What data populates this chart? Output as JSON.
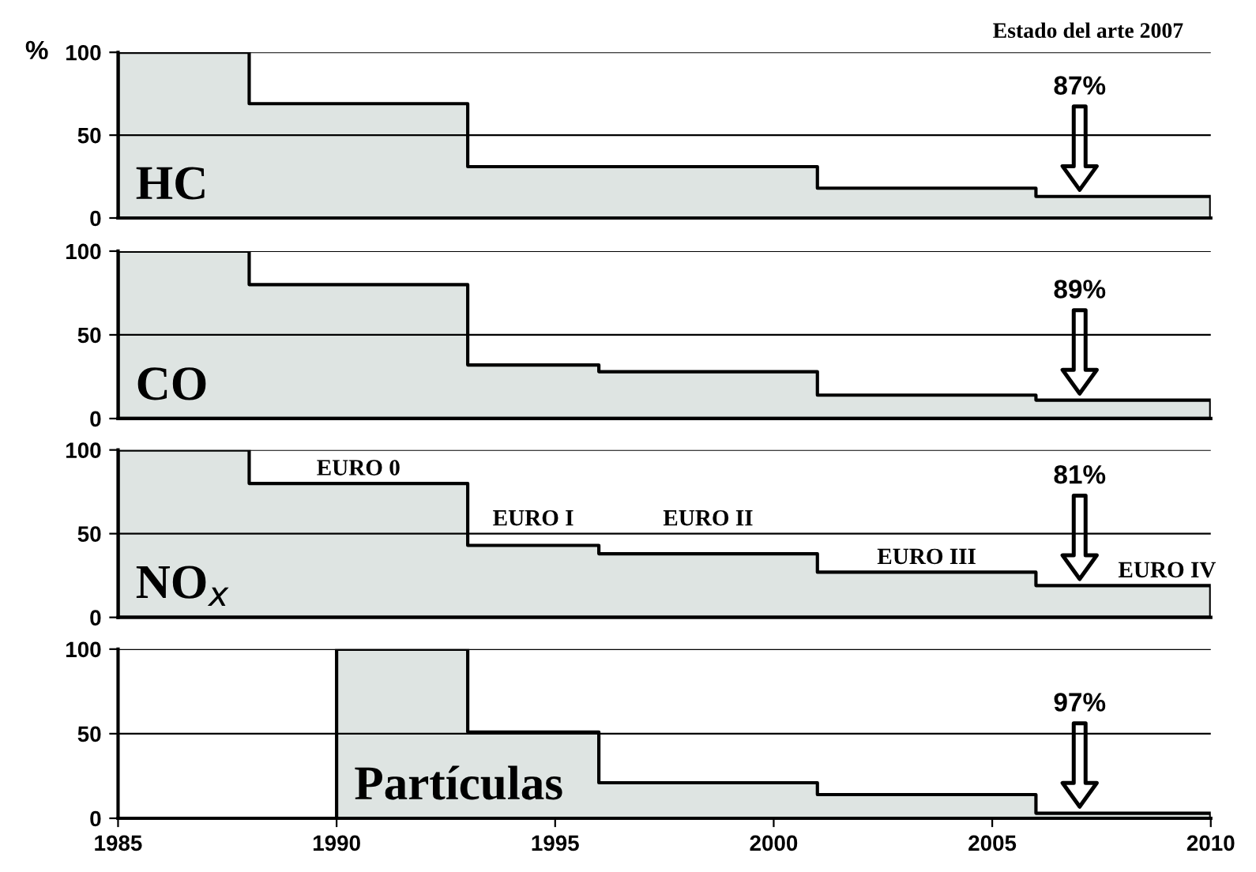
{
  "chart_data": [
    {
      "type": "area",
      "title": "Estado del arte 2007",
      "ylabel": "%",
      "x": [
        1985,
        1988,
        1993,
        2001,
        2006,
        2010
      ],
      "xlim": [
        1985,
        2010
      ],
      "ylim": [
        0,
        100
      ],
      "yticks": [
        0,
        50,
        100
      ],
      "grid": "y",
      "tick_labels": "y",
      "series": [
        {
          "color": "#dee4e2",
          "values": [
            100,
            69,
            31,
            18,
            13,
            13
          ]
        }
      ],
      "annotations": [
        "HC",
        "87%"
      ]
    },
    {
      "type": "area",
      "x": [
        1985,
        1988,
        1993,
        1996,
        2001,
        2006,
        2010
      ],
      "xlim": [
        1985,
        2010
      ],
      "ylim": [
        0,
        100
      ],
      "yticks": [
        0,
        50,
        100
      ],
      "grid": "y",
      "tick_labels": "y",
      "series": [
        {
          "color": "#dee4e2",
          "values": [
            100,
            80,
            32,
            28,
            14,
            11,
            11
          ]
        }
      ],
      "annotations": [
        "CO",
        "89%"
      ]
    },
    {
      "type": "area",
      "x": [
        1985,
        1988,
        1993,
        1996,
        2001,
        2006,
        2010
      ],
      "xlim": [
        1985,
        2010
      ],
      "ylim": [
        0,
        100
      ],
      "yticks": [
        0,
        50,
        100
      ],
      "grid": "y",
      "tick_labels": "y",
      "series": [
        {
          "color": "#dee4e2",
          "values": [
            100,
            80,
            43,
            38,
            27,
            19,
            19
          ]
        }
      ],
      "annotations": [
        "NO$_{x}$",
        "81%",
        {
          "text": "EURO 0",
          "x": 1990.5,
          "y": 80
        },
        {
          "text": "EURO I",
          "x": 1994.5,
          "y": 43
        },
        {
          "text": "EURO II",
          "x": 1998.5,
          "y": 38
        },
        {
          "text": "EURO III",
          "x": 2003.5,
          "y": 27
        },
        {
          "text": "EURO IV",
          "x": 2009,
          "y": 19
        }
      ]
    },
    {
      "type": "area",
      "x": [
        1990,
        1993,
        1996,
        2001,
        2006,
        2010
      ],
      "xlim": [
        1985,
        2010
      ],
      "ylim": [
        0,
        100
      ],
      "xticks": [
        1985,
        1990,
        1995,
        2000,
        2005,
        2010
      ],
      "yticks": [
        0,
        50,
        100
      ],
      "grid": "y",
      "series": [
        {
          "color": "#dee4e2",
          "values": [
            100,
            51,
            21,
            14,
            3,
            3
          ]
        }
      ],
      "annotations": [
        "Partículas",
        "97%"
      ]
    }
  ]
}
